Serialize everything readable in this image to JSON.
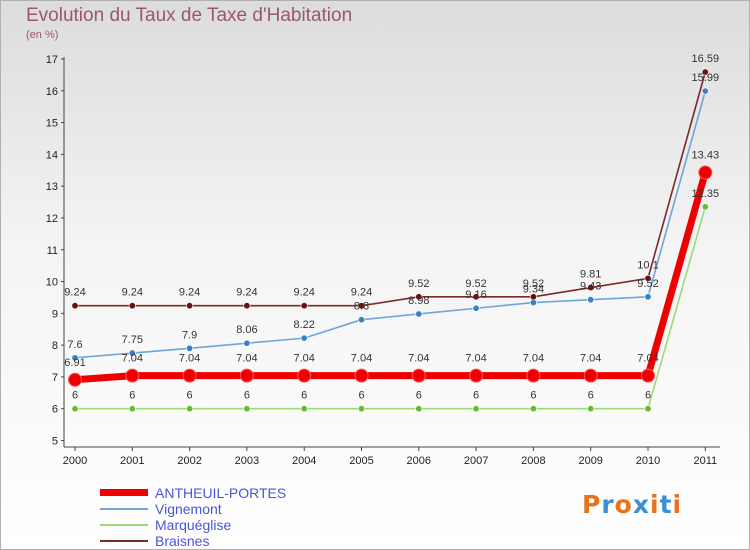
{
  "chart_data": {
    "type": "line",
    "title": "Evolution du Taux de Taxe d'Habitation",
    "ylabel": "(en %)",
    "xlabel": "",
    "categories": [
      "2000",
      "2001",
      "2002",
      "2003",
      "2004",
      "2005",
      "2006",
      "2007",
      "2008",
      "2009",
      "2010",
      "2011"
    ],
    "ylim": [
      5,
      17
    ],
    "yticks": [
      "5",
      "6",
      "7",
      "8",
      "9",
      "10",
      "11",
      "12",
      "13",
      "14",
      "15",
      "16",
      "17"
    ],
    "grid": false,
    "legend_position": "bottom-left",
    "series": [
      {
        "name": "ANTHEUIL-PORTES",
        "color": "#ee0000",
        "values": [
          6.91,
          7.04,
          7.04,
          7.04,
          7.04,
          7.04,
          7.04,
          7.04,
          7.04,
          7.04,
          7.04,
          13.43
        ],
        "labels": [
          "6.91",
          "7.04",
          "7.04",
          "7.04",
          "7.04",
          "7.04",
          "7.04",
          "7.04",
          "7.04",
          "7.04",
          "7.04",
          "13.43"
        ]
      },
      {
        "name": "Vignemont",
        "color": "#6fa5d8",
        "values": [
          7.6,
          7.75,
          7.9,
          8.06,
          8.22,
          8.8,
          8.98,
          9.16,
          9.34,
          9.43,
          9.52,
          15.99
        ],
        "labels": [
          "7.6",
          "7.75",
          "7.9",
          "8.06",
          "8.22",
          "8.8",
          "8.98",
          "9.16",
          "9.34",
          "9.43",
          "9.52",
          "15.99"
        ]
      },
      {
        "name": "Marquéglise",
        "color": "#99dd77",
        "values": [
          6,
          6,
          6,
          6,
          6,
          6,
          6,
          6,
          6,
          6,
          6,
          12.35
        ],
        "labels": [
          "6",
          "6",
          "6",
          "6",
          "6",
          "6",
          "6",
          "6",
          "6",
          "6",
          "6",
          "12.35"
        ]
      },
      {
        "name": "Braisnes",
        "color": "#7a2a2a",
        "values": [
          9.24,
          9.24,
          9.24,
          9.24,
          9.24,
          9.24,
          9.52,
          9.52,
          9.52,
          9.81,
          10.1,
          16.59
        ],
        "labels": [
          "9.24",
          "9.24",
          "9.24",
          "9.24",
          "9.24",
          "9.24",
          "9.52",
          "9.52",
          "9.52",
          "9.81",
          "10.1",
          "16.59"
        ]
      }
    ]
  },
  "logo": {
    "text": "Proxiti",
    "letter_colors": [
      "#e8731a",
      "#3d8fd1",
      "#e8731a",
      "#3d8fd1",
      "#e8731a",
      "#3d8fd1",
      "#e8731a"
    ]
  }
}
